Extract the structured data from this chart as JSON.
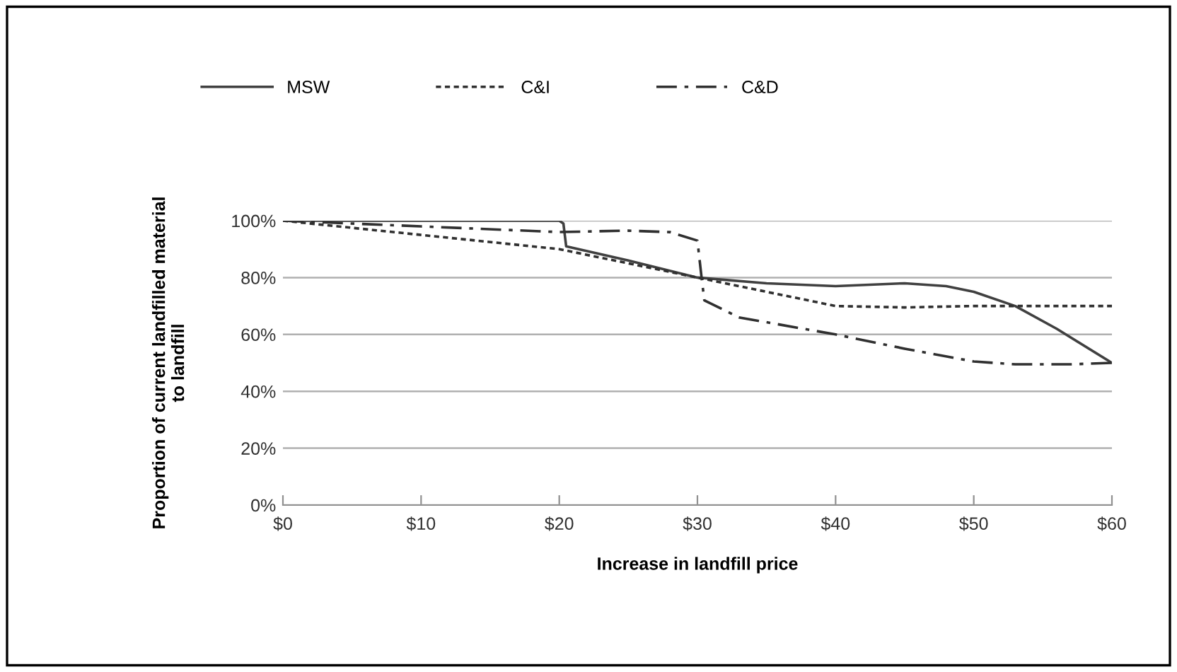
{
  "chart_data": {
    "type": "line",
    "xlabel": "Increase in landfill price",
    "ylabel": "Proportion of current landfilled material\nto landfill",
    "xlim": [
      0,
      60
    ],
    "xticks": [
      {
        "value": 0,
        "label": "$0"
      },
      {
        "value": 10,
        "label": "$10"
      },
      {
        "value": 20,
        "label": "$20"
      },
      {
        "value": 30,
        "label": "$30"
      },
      {
        "value": 40,
        "label": "$40"
      },
      {
        "value": 50,
        "label": "$50"
      },
      {
        "value": 60,
        "label": "$60"
      }
    ],
    "ylim": [
      0,
      100
    ],
    "yticks": [
      {
        "value": 0,
        "label": "0%"
      },
      {
        "value": 20,
        "label": "20%"
      },
      {
        "value": 40,
        "label": "40%"
      },
      {
        "value": 60,
        "label": "60%"
      },
      {
        "value": 80,
        "label": "80%"
      },
      {
        "value": 100,
        "label": "100%"
      }
    ],
    "grid": "y",
    "legend": "top",
    "marker": "none",
    "series": [
      {
        "name": "MSW",
        "color": "#404040",
        "line_style": "solid",
        "x": [
          0,
          10,
          20,
          20.3,
          20.5,
          25,
          30,
          35,
          40,
          45,
          48,
          50,
          53,
          56,
          60
        ],
        "values": [
          100,
          100,
          100,
          99,
          91,
          86,
          80,
          78,
          77,
          78,
          77,
          75,
          70,
          62,
          50
        ]
      },
      {
        "name": "C&I",
        "color": "#303030",
        "line_style": "dotted",
        "x": [
          0,
          10,
          20,
          25,
          30,
          35,
          40,
          45,
          50,
          60
        ],
        "values": [
          100,
          95,
          90,
          85,
          80,
          75,
          70,
          69.5,
          70,
          70
        ]
      },
      {
        "name": "C&D",
        "color": "#303030",
        "line_style": "dashdot",
        "x": [
          0,
          10,
          20,
          25,
          28,
          30,
          30.3,
          30.5,
          33,
          40,
          45,
          50,
          53,
          57,
          60
        ],
        "values": [
          100,
          98,
          96,
          96.5,
          96,
          93,
          80,
          72,
          66,
          60,
          55,
          50.5,
          49.5,
          49.5,
          50
        ]
      }
    ]
  }
}
